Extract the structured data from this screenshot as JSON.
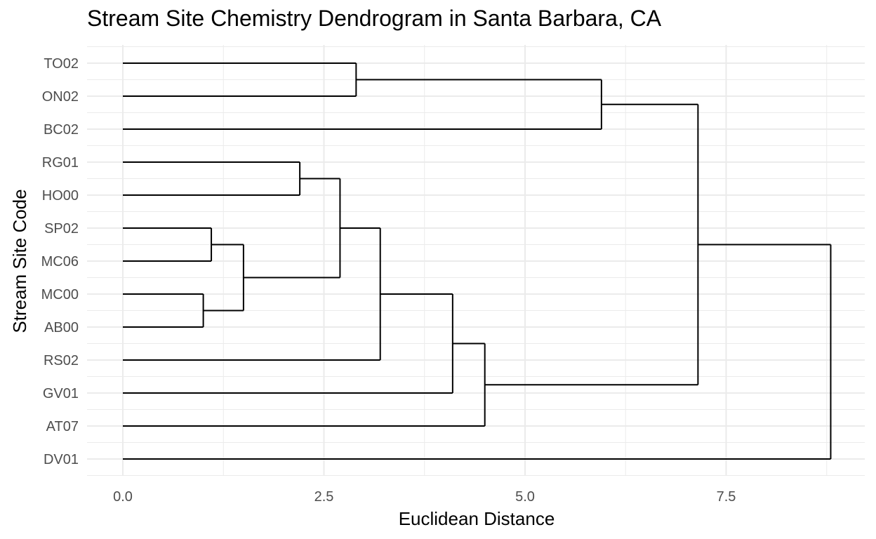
{
  "chart_data": {
    "type": "dendrogram",
    "title": "Stream Site Chemistry Dendrogram in Santa Barbara, CA",
    "xlabel": "Euclidean Distance",
    "ylabel": "Stream Site Code",
    "xlim": [
      0,
      9.0
    ],
    "x_ticks": [
      0.0,
      2.5,
      5.0,
      7.5
    ],
    "x_tick_labels": [
      "0.0",
      "2.5",
      "5.0",
      "7.5"
    ],
    "leaves": [
      "TO02",
      "ON02",
      "BC02",
      "RG01",
      "HO00",
      "SP02",
      "MC06",
      "MC00",
      "AB00",
      "RS02",
      "GV01",
      "AT07",
      "DV01"
    ],
    "merges": [
      {
        "left": "MC00",
        "right": "AB00",
        "height": 1.0
      },
      {
        "left": "SP02",
        "right": "MC06",
        "height": 1.1
      },
      {
        "left": "SP02+MC06",
        "right": "MC00+AB00",
        "height": 1.5
      },
      {
        "left": "RG01",
        "right": "HO00",
        "height": 2.2
      },
      {
        "left": "RG01+HO00",
        "right": "SP02+MC06+MC00+AB00",
        "height": 2.7
      },
      {
        "left": "TO02",
        "right": "ON02",
        "height": 2.9
      },
      {
        "left": "RG01..AB00",
        "right": "RS02",
        "height": 3.2
      },
      {
        "left": "RG01..RS02",
        "right": "GV01",
        "height": 4.1
      },
      {
        "left": "RG01..GV01",
        "right": "AT07",
        "height": 4.5
      },
      {
        "left": "TO02+ON02",
        "right": "BC02",
        "height": 5.95
      },
      {
        "left": "TO02..BC02",
        "right": "RG01..AT07",
        "height": 7.15
      },
      {
        "left": "TO02..AT07",
        "right": "DV01",
        "height": 8.8
      }
    ],
    "grid": true,
    "legend": "none",
    "line_color": "#000000",
    "grid_color": "#ebebeb"
  }
}
